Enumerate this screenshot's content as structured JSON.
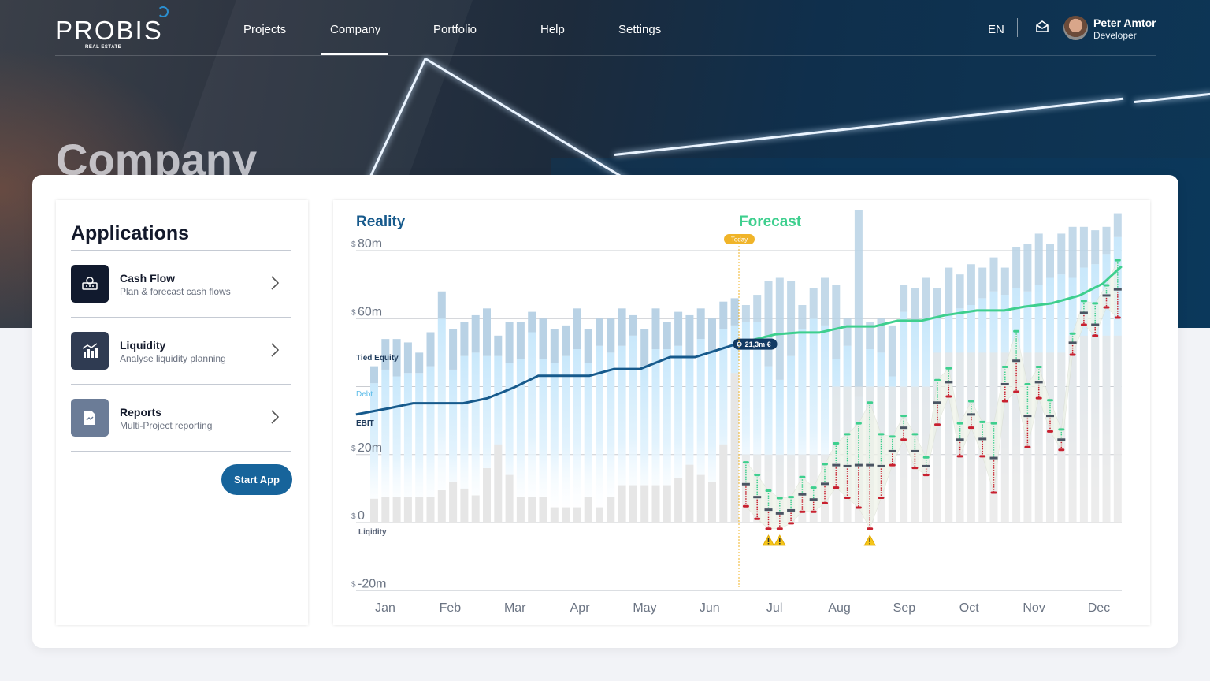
{
  "header": {
    "logo": "PROBIS",
    "logo_sub": "REAL ESTATE",
    "nav": [
      "Projects",
      "Company",
      "Portfolio",
      "Help",
      "Settings"
    ],
    "active_nav": "Company",
    "language": "EN",
    "user": {
      "name": "Peter Amtor",
      "role": "Developer"
    }
  },
  "page_title": "Company",
  "applications": {
    "title": "Applications",
    "items": [
      {
        "title": "Cash Flow",
        "subtitle": "Plan & forecast cash flows",
        "icon": "cash-flow-icon",
        "color": "#111a2e"
      },
      {
        "title": "Liquidity",
        "subtitle": "Analyse liquidity planning",
        "icon": "bar-chart-icon",
        "color": "#2f3b52"
      },
      {
        "title": "Reports",
        "subtitle": "Multi-Project reporting",
        "icon": "report-icon",
        "color": "#6b7c97"
      }
    ],
    "start_button": "Start App"
  },
  "chart_data": {
    "type": "bar",
    "section_labels": {
      "reality": "Reality",
      "forecast": "Forecast"
    },
    "today_label": "Today",
    "tooltip": "21,3m €",
    "currency_symbol": "$",
    "y_ticks": [
      {
        "v": 80,
        "label": "80m"
      },
      {
        "v": 60,
        "label": "60m"
      },
      {
        "v": 40,
        "label": ""
      },
      {
        "v": 20,
        "label": "20m"
      },
      {
        "v": 0,
        "label": "0"
      },
      {
        "v": -20,
        "label": "-20m"
      }
    ],
    "ylim": [
      -20,
      80
    ],
    "months": [
      "Jan",
      "Feb",
      "Mar",
      "Apr",
      "May",
      "Jun",
      "Jul",
      "Aug",
      "Sep",
      "Oct",
      "Nov",
      "Dec"
    ],
    "series_labels": {
      "tied_equity": "Tied Equity",
      "debt": "Debt",
      "ebit": "EBIT",
      "liquidity": "Liqidity"
    },
    "colors": {
      "reality": "#175a8c",
      "forecast": "#3ecf8e",
      "tied_equity": "#b9d2e5",
      "debt": "#cfeafb",
      "liquidity": "#e6e6e6",
      "today": "#f0b429",
      "high": "#3ecf8e",
      "low": "#c8202f",
      "mid": "#4b5563"
    },
    "bar_totals": [
      46,
      54,
      54,
      53,
      50,
      56,
      68,
      57,
      59,
      61,
      63,
      55,
      59,
      59,
      62,
      60,
      57,
      58,
      63,
      57,
      60,
      60,
      63,
      61,
      57,
      63,
      59,
      62,
      61,
      63,
      60,
      65,
      66,
      64,
      67,
      71,
      72,
      71,
      64,
      69,
      72,
      70,
      60,
      92,
      59,
      60,
      58,
      70,
      69,
      72,
      69,
      75,
      73,
      76,
      75,
      78,
      75,
      81,
      82,
      85,
      82,
      85,
      87,
      87,
      86,
      87,
      91
    ],
    "tied_equity": [
      5,
      9,
      11,
      9,
      6,
      10,
      8,
      12,
      10,
      11,
      14,
      6,
      12,
      11,
      6,
      12,
      10,
      9,
      12,
      10,
      8,
      10,
      11,
      6,
      11,
      12,
      8,
      10,
      12,
      9,
      10,
      8,
      8,
      5,
      8,
      25,
      30,
      22,
      7,
      9,
      14,
      22,
      8,
      55,
      8,
      10,
      15,
      8,
      10,
      12,
      9,
      14,
      10,
      12,
      9,
      10,
      8,
      12,
      14,
      15,
      10,
      12,
      15,
      12,
      10,
      8,
      7
    ],
    "liquidity_bars": [
      7,
      7.5,
      7.5,
      7.5,
      7.5,
      7.5,
      9.5,
      12,
      10,
      8,
      16,
      23,
      14,
      7.5,
      7.5,
      7.5,
      4.5,
      4.5,
      4.5,
      7.5,
      4.5,
      7.5,
      11,
      11,
      11,
      11,
      11,
      13,
      17,
      14,
      12,
      23,
      44,
      20,
      20,
      20,
      20,
      20,
      20,
      20,
      20,
      40,
      40,
      40,
      40,
      40,
      40,
      40,
      40,
      40,
      50,
      50,
      50,
      50,
      50,
      50,
      50,
      50,
      50,
      50,
      50,
      50,
      55,
      55,
      55,
      55,
      55
    ],
    "forecast_start_index": 33,
    "liquidity_forecast": [
      {
        "high": 17.7,
        "mid": 11.3,
        "low": 4.8
      },
      {
        "high": 14.0,
        "mid": 7.5,
        "low": 1.1
      },
      {
        "high": 9.4,
        "mid": 3.8,
        "low": -1.8,
        "warning": true
      },
      {
        "high": 7.2,
        "mid": 2.7,
        "low": -1.8,
        "warning": true
      },
      {
        "high": 7.5,
        "mid": 3.6,
        "low": -0.2
      },
      {
        "high": 13.4,
        "mid": 8.3,
        "low": 3.2
      },
      {
        "high": 10.3,
        "mid": 6.8,
        "low": 3.2
      },
      {
        "high": 17.2,
        "mid": 11.4,
        "low": 5.7
      },
      {
        "high": 23.3,
        "mid": 16.9,
        "low": 10.3
      },
      {
        "high": 26.0,
        "mid": 16.6,
        "low": 7.3
      },
      {
        "high": 29.2,
        "mid": 16.9,
        "low": 4.4
      },
      {
        "high": 35.3,
        "mid": 16.9,
        "low": -1.8,
        "warning": true
      },
      {
        "high": 26.0,
        "mid": 16.6,
        "low": 7.3
      },
      {
        "high": 25.3,
        "mid": 21.0,
        "low": 16.9
      },
      {
        "high": 31.4,
        "mid": 27.9,
        "low": 24.4
      },
      {
        "high": 26.0,
        "mid": 21.0,
        "low": 16.1
      },
      {
        "high": 19.2,
        "mid": 16.6,
        "low": 14.0
      },
      {
        "high": 41.9,
        "mid": 35.3,
        "low": 28.8
      },
      {
        "high": 45.4,
        "mid": 41.3,
        "low": 37.1
      },
      {
        "high": 29.2,
        "mid": 24.4,
        "low": 19.5
      },
      {
        "high": 35.7,
        "mid": 31.8,
        "low": 27.9
      },
      {
        "high": 29.6,
        "mid": 24.6,
        "low": 19.5
      },
      {
        "high": 29.2,
        "mid": 19.0,
        "low": 8.8
      },
      {
        "high": 45.8,
        "mid": 40.7,
        "low": 35.7
      },
      {
        "high": 56.3,
        "mid": 47.6,
        "low": 38.5
      },
      {
        "high": 40.7,
        "mid": 31.4,
        "low": 22.2
      },
      {
        "high": 45.8,
        "mid": 41.3,
        "low": 36.6
      },
      {
        "high": 36.0,
        "mid": 31.4,
        "low": 26.8
      },
      {
        "high": 27.4,
        "mid": 24.4,
        "low": 21.4
      },
      {
        "high": 55.6,
        "mid": 52.9,
        "low": 49.4
      },
      {
        "high": 65.2,
        "mid": 61.7,
        "low": 58.2
      },
      {
        "high": 64.5,
        "mid": 58.2,
        "low": 55.0
      },
      {
        "high": 69.8,
        "mid": 66.8,
        "low": 63.3
      },
      {
        "high": 77.2,
        "mid": 68.6,
        "low": 60.3
      }
    ],
    "ebit_reality": [
      [
        0.55,
        31.8
      ],
      [
        1.05,
        33.6
      ],
      [
        1.43,
        35.1
      ],
      [
        2.2,
        35.1
      ],
      [
        2.58,
        36.6
      ],
      [
        2.98,
        39.7
      ],
      [
        3.36,
        43.2
      ],
      [
        4.15,
        43.2
      ],
      [
        4.53,
        45.2
      ],
      [
        4.93,
        45.2
      ],
      [
        5.39,
        48.7
      ],
      [
        5.78,
        48.7
      ],
      [
        6.41,
        52.5
      ]
    ],
    "ebit_forecast": [
      [
        6.41,
        52.5
      ],
      [
        7.02,
        55.4
      ],
      [
        7.38,
        55.9
      ],
      [
        7.69,
        55.9
      ],
      [
        8.11,
        57.7
      ],
      [
        8.54,
        57.7
      ],
      [
        8.9,
        59.4
      ],
      [
        9.27,
        59.4
      ],
      [
        9.63,
        61.0
      ],
      [
        10.12,
        62.4
      ],
      [
        10.54,
        62.4
      ],
      [
        10.85,
        63.5
      ],
      [
        11.27,
        64.5
      ],
      [
        11.7,
        66.8
      ],
      [
        12.06,
        70.3
      ],
      [
        12.35,
        75.4
      ]
    ]
  }
}
